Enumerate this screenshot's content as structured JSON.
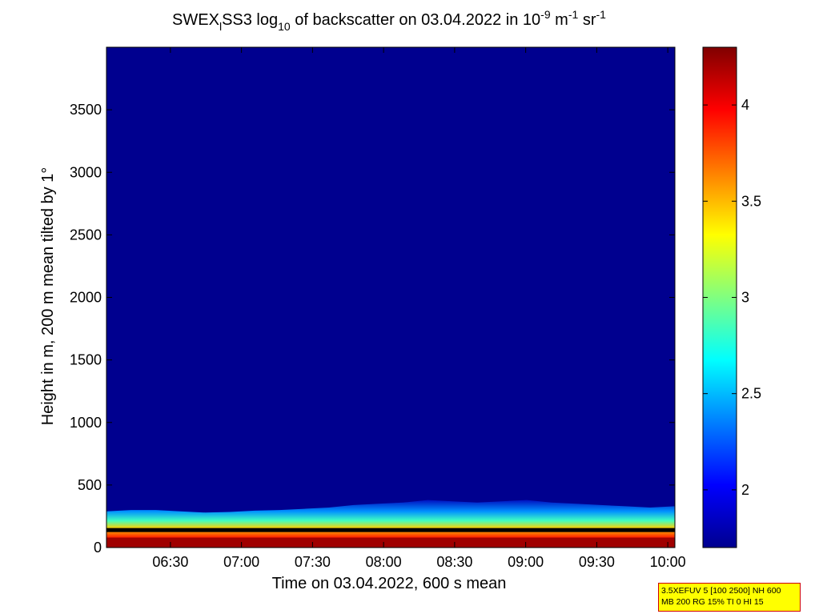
{
  "chart_data": {
    "type": "heatmap",
    "title": {
      "prefix": "SWEX",
      "prefix_sub": "l",
      "middle": "SS3 log",
      "middle_sub": "10",
      "suffix": " of backscatter on 03.04.2022 in 10",
      "exp1": "-9",
      "unit1": " m",
      "exp2": "-1",
      "unit2": " sr",
      "exp3": "-1"
    },
    "xlabel": "Time on 03.04.2022, 600 s mean",
    "ylabel": "Height in m, 200 m mean tilted by 1°",
    "x_range": [
      "06:03",
      "10:03"
    ],
    "y_range": [
      0,
      4000
    ],
    "x_ticks": [
      "06:30",
      "07:00",
      "07:30",
      "08:00",
      "08:30",
      "09:00",
      "09:30",
      "10:00"
    ],
    "y_ticks": [
      0,
      500,
      1000,
      1500,
      2000,
      2500,
      3000,
      3500
    ],
    "colorbar": {
      "range": [
        1.7,
        4.3
      ],
      "ticks": [
        "2",
        "2.5",
        "3",
        "3.5",
        "4"
      ],
      "colormap": "jet"
    },
    "background_value": 1.75,
    "layers": [
      {
        "name": "surface layer",
        "height_range": [
          0,
          80
        ],
        "value": 4.25
      },
      {
        "name": "aerosol layer",
        "top_heights": [
          290,
          300,
          300,
          290,
          280,
          285,
          295,
          300,
          310,
          320,
          340,
          350,
          360,
          380,
          370,
          360,
          370,
          380,
          360,
          350,
          340,
          330,
          320,
          330
        ]
      }
    ]
  },
  "infobox": {
    "line1": "3.5XEFUV 5 [100 2500] NH 600",
    "line2": "MB 200 RG 15% TI 0 HI 15"
  }
}
